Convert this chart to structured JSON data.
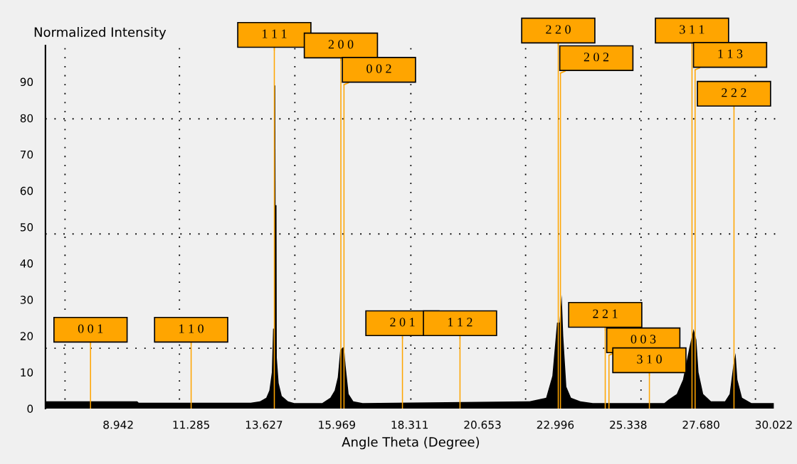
{
  "chart_data": {
    "type": "area",
    "xlabel": "Angle Theta (Degree)",
    "ylabel": "Normalized Intensity",
    "xlim": [
      6.6,
      30.1
    ],
    "xticks": [
      8.942,
      11.285,
      13.627,
      15.969,
      18.311,
      20.653,
      22.996,
      25.338,
      {
        "value": 27.68,
        "label": "27.680"
      },
      30.022
    ],
    "ylim": [
      0,
      100
    ],
    "yticks": [
      0,
      10,
      20,
      30,
      40,
      50,
      60,
      70,
      80,
      90
    ],
    "grid": false,
    "ref_lines": [
      {
        "axis": "y",
        "value": 16.6,
        "color": "#000000",
        "line_style": "dotted"
      },
      {
        "axis": "y",
        "value": 48.1,
        "color": "#000000",
        "line_style": "dotted"
      },
      {
        "axis": "y",
        "value": 79.8,
        "color": "#000000",
        "line_style": "dotted"
      },
      {
        "axis": "x",
        "value": 7.23,
        "color": "#000000",
        "line_style": "dotted"
      },
      {
        "axis": "x",
        "value": 10.91,
        "color": "#000000",
        "line_style": "dotted"
      },
      {
        "axis": "x",
        "value": 14.62,
        "color": "#000000",
        "line_style": "dotted"
      },
      {
        "axis": "x",
        "value": 18.35,
        "color": "#000000",
        "line_style": "dotted"
      },
      {
        "axis": "x",
        "value": 22.04,
        "color": "#000000",
        "line_style": "dotted"
      },
      {
        "axis": "x",
        "value": 25.75,
        "color": "#000000",
        "line_style": "dotted"
      },
      {
        "axis": "x",
        "value": 29.43,
        "color": "#000000",
        "line_style": "dotted"
      }
    ],
    "series": [
      {
        "color": "#000000",
        "x": [
          6.6,
          9.55,
          9.6,
          13.2,
          13.5,
          13.7,
          13.8,
          13.88,
          13.92,
          13.95,
          13.96,
          13.99,
          14.0,
          14.03,
          14.04,
          14.1,
          14.2,
          14.4,
          14.6,
          15.5,
          15.76,
          15.9,
          16.0,
          16.08,
          16.12,
          16.2,
          16.25,
          16.35,
          16.5,
          16.8,
          22.17,
          22.7,
          22.9,
          23.05,
          23.13,
          23.2,
          23.25,
          23.35,
          23.5,
          23.8,
          24.2,
          26.5,
          26.64,
          26.9,
          27.1,
          27.3,
          27.44,
          27.53,
          27.6,
          27.75,
          28.0,
          28.45,
          28.6,
          28.72,
          28.79,
          28.85,
          29.0,
          29.3,
          30.02
        ],
        "values": [
          2.0,
          2.0,
          1.6,
          1.6,
          2.0,
          3.0,
          5.0,
          10.0,
          22.0,
          22.0,
          89.0,
          89.0,
          56.0,
          56.0,
          14.0,
          7.0,
          3.5,
          2.0,
          1.5,
          1.5,
          3.0,
          5.0,
          8.6,
          16.2,
          16.5,
          17.0,
          12.0,
          4.0,
          2.0,
          1.5,
          2.0,
          3.0,
          9.0,
          23.7,
          23.7,
          31.3,
          20.0,
          6.0,
          3.0,
          2.0,
          1.5,
          1.5,
          2.5,
          4.0,
          8.0,
          16.6,
          21.9,
          19.0,
          10.0,
          4.0,
          2.0,
          2.0,
          4.0,
          12.0,
          15.3,
          8.0,
          3.0,
          1.5,
          1.5
        ]
      },
      {
        "type": "bar",
        "color": "#ffa500",
        "x": [
          8.05,
          11.285,
          13.96,
          16.1,
          16.2,
          18.08,
          19.93,
          23.09,
          23.16,
          24.6,
          24.72,
          26.02,
          27.39,
          27.49,
          28.74
        ],
        "values": [
          17.6,
          17.6,
          98.8,
          95.9,
          89.2,
          19.4,
          19.4,
          100,
          92.4,
          21.7,
          14.7,
          9.2,
          100,
          93.3,
          82.6
        ]
      }
    ],
    "annotations": [
      {
        "text": "0 0 1",
        "x": 8.05,
        "y": 17.6
      },
      {
        "text": "1 1 0",
        "x": 11.285,
        "y": 17.6
      },
      {
        "text": "1 1 1",
        "x": 13.96,
        "y": 98.8
      },
      {
        "text": "2 0 0",
        "x": 16.1,
        "y": 95.9
      },
      {
        "text": "0 0 2",
        "x": 16.2,
        "y": 89.2
      },
      {
        "text": "2 0 1",
        "x": 18.08,
        "y": 19.4
      },
      {
        "text": "1 1 2",
        "x": 19.93,
        "y": 19.4
      },
      {
        "text": "2 2 0",
        "x": 23.09,
        "y": 100
      },
      {
        "text": "2 0 2",
        "x": 23.16,
        "y": 92.4
      },
      {
        "text": "2 2 1",
        "x": 24.6,
        "y": 21.7
      },
      {
        "text": "0 0 3",
        "x": 24.72,
        "y": 14.7
      },
      {
        "text": "3 1 0",
        "x": 26.02,
        "y": 9.2
      },
      {
        "text": "3 1 1",
        "x": 27.39,
        "y": 100
      },
      {
        "text": "1 1 3",
        "x": 27.49,
        "y": 93.3
      },
      {
        "text": "2 2 2",
        "x": 28.74,
        "y": 82.6
      }
    ]
  }
}
